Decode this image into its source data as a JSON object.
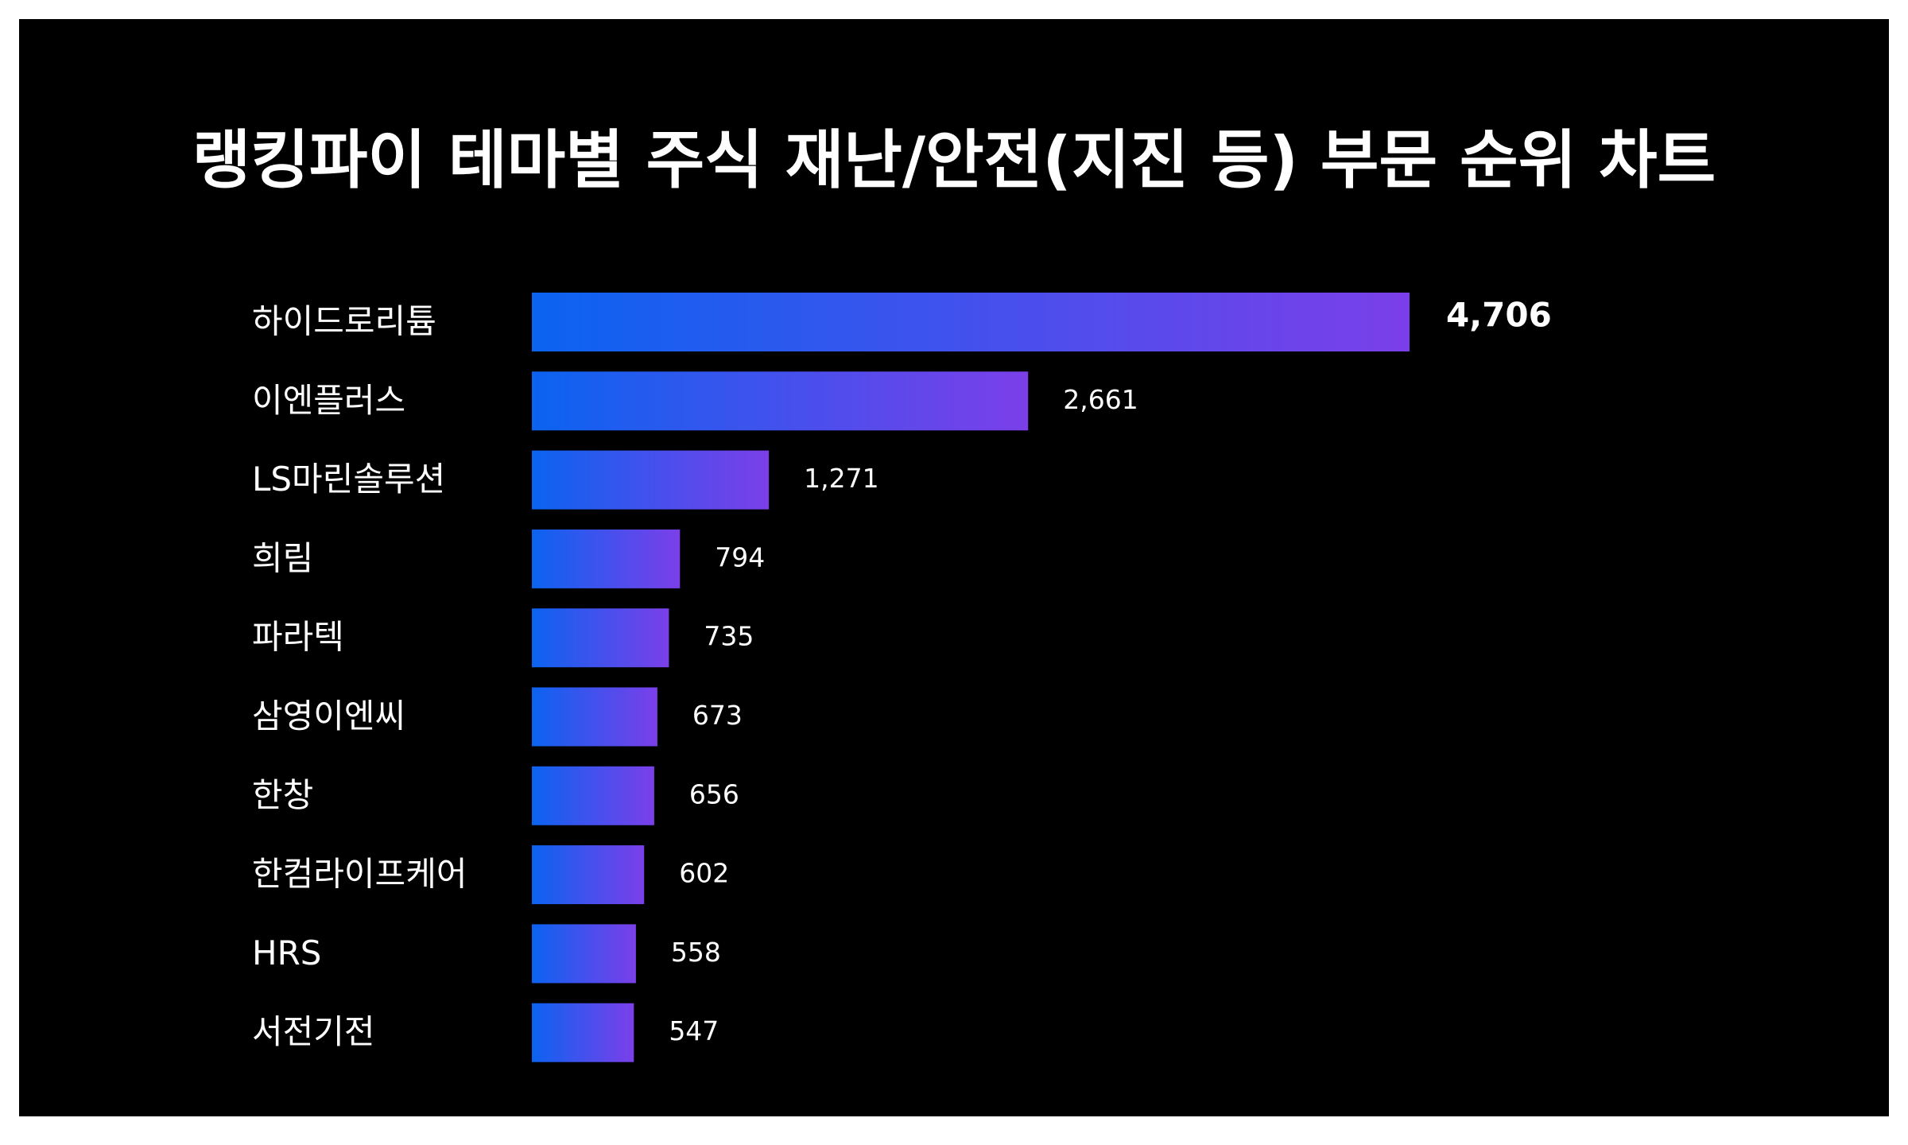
{
  "chart_data": {
    "type": "barh",
    "title": "랭킹파이 테마별 주식 재난/안전(지진 등) 부문 순위 차트",
    "categories": [
      "하이드로리튬",
      "이엔플러스",
      "LS마린솔루션",
      "희림",
      "파라텍",
      "삼영이엔씨",
      "한창",
      "한컴라이프케어",
      "HRS",
      "서전기전"
    ],
    "values": [
      4706,
      2661,
      1271,
      794,
      735,
      673,
      656,
      602,
      558,
      547
    ],
    "value_labels": [
      "4,706",
      "2,661",
      "1,271",
      "794",
      "735",
      "673",
      "656",
      "602",
      "558",
      "547"
    ],
    "color_gradient": [
      "#0b63f0",
      "#7b3fe9"
    ],
    "background": "#000000"
  }
}
